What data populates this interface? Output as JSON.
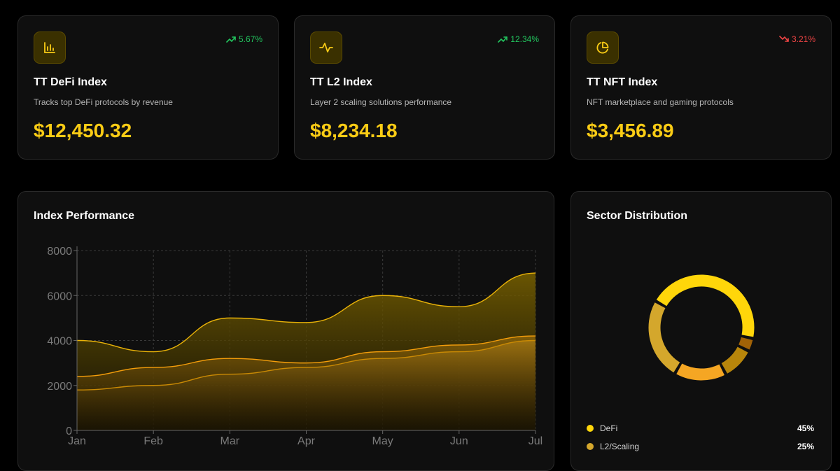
{
  "cards": [
    {
      "icon": "bar-chart-icon",
      "change": "5.67%",
      "direction": "up",
      "title": "TT DeFi Index",
      "description": "Tracks top DeFi protocols by revenue",
      "value": "$12,450.32"
    },
    {
      "icon": "activity-icon",
      "change": "12.34%",
      "direction": "up",
      "title": "TT L2 Index",
      "description": "Layer 2 scaling solutions performance",
      "value": "$8,234.18"
    },
    {
      "icon": "pie-chart-icon",
      "change": "3.21%",
      "direction": "down",
      "title": "TT NFT Index",
      "description": "NFT marketplace and gaming protocols",
      "value": "$3,456.89"
    }
  ],
  "performance": {
    "title": "Index Performance"
  },
  "sectors": {
    "title": "Sector Distribution",
    "legend": [
      {
        "name": "DeFi",
        "pct": "45%",
        "color": "#ffd60a"
      },
      {
        "name": "L2/Scaling",
        "pct": "25%",
        "color": "#d4a72c"
      }
    ]
  },
  "colors": {
    "accent": "#facc15",
    "positive": "#22c55e",
    "negative": "#ef4444"
  },
  "chart_data": [
    {
      "type": "area",
      "title": "Index Performance",
      "x": [
        "Jan",
        "Feb",
        "Mar",
        "Apr",
        "May",
        "Jun",
        "Jul"
      ],
      "yticks": [
        0,
        2000,
        4000,
        6000,
        8000
      ],
      "ylim": [
        0,
        8000
      ],
      "grid": true,
      "series": [
        {
          "values": [
            4000,
            3500,
            5000,
            4800,
            6000,
            5500,
            7000
          ],
          "color": "#eab308"
        },
        {
          "values": [
            2400,
            2800,
            3200,
            3000,
            3500,
            3800,
            4200
          ],
          "color": "#f59e0b"
        },
        {
          "values": [
            1800,
            2000,
            2500,
            2800,
            3200,
            3500,
            4000
          ],
          "color": "#ca8a04"
        }
      ]
    },
    {
      "type": "pie",
      "title": "Sector Distribution",
      "slices": [
        {
          "label": "DeFi",
          "value": 45,
          "color": "#ffd60a"
        },
        {
          "label": "",
          "value": 4,
          "color": "#a16207"
        },
        {
          "label": "",
          "value": 10,
          "color": "#b8860b"
        },
        {
          "label": "",
          "value": 16,
          "color": "#f5a623"
        },
        {
          "label": "L2/Scaling",
          "value": 25,
          "color": "#d4a72c"
        }
      ]
    }
  ]
}
